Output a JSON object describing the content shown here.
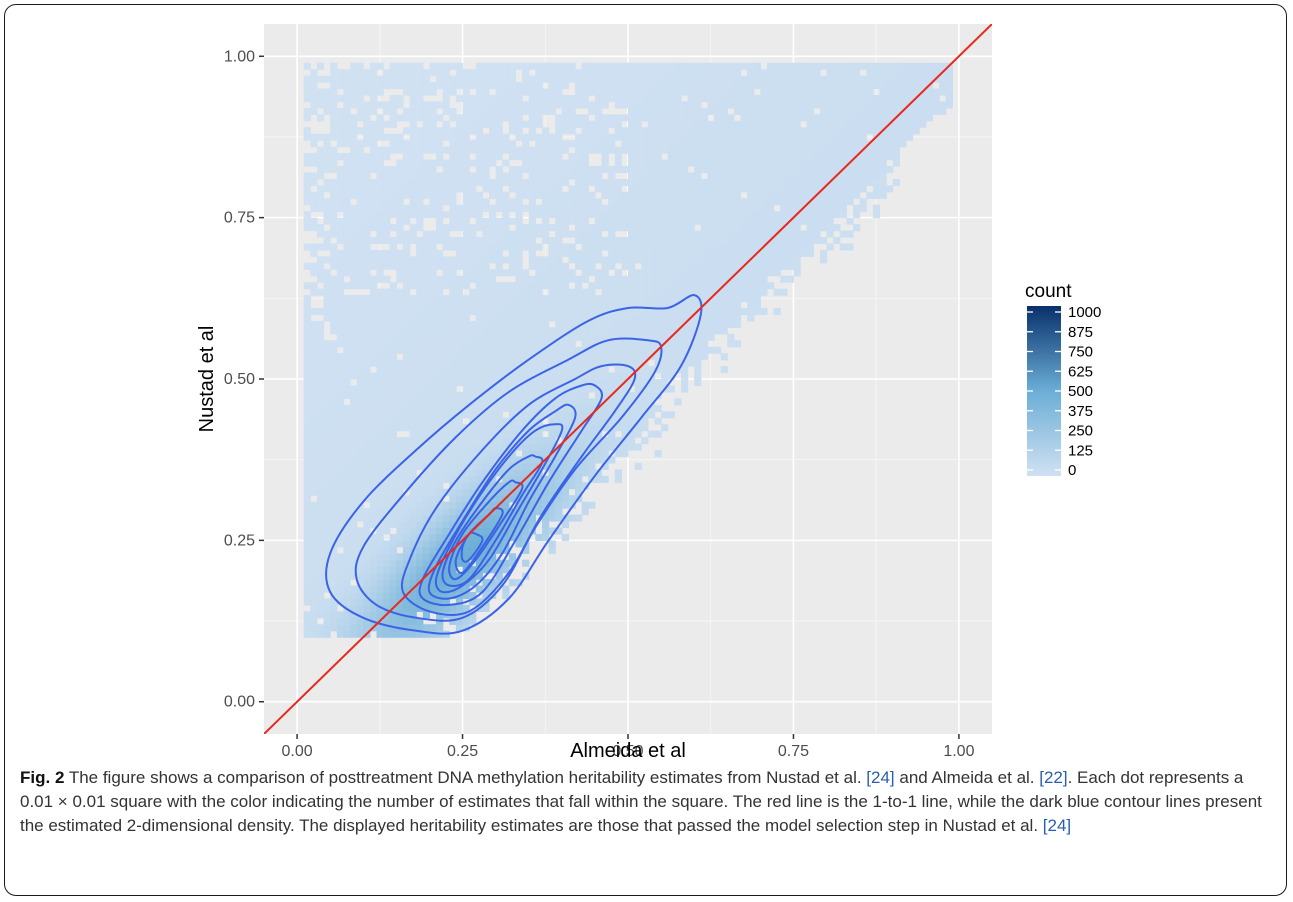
{
  "chart_data": {
    "type": "heatmap",
    "xlabel": "Almeida et al",
    "ylabel": "Nustad et al",
    "xlim": [
      -0.05,
      1.05
    ],
    "ylim": [
      -0.05,
      1.05
    ],
    "x_ticks": [
      "0.00",
      "0.25",
      "0.50",
      "0.75",
      "1.00"
    ],
    "y_ticks": [
      "0.00",
      "0.25",
      "0.50",
      "0.75",
      "1.00"
    ],
    "x_tick_values": [
      0,
      0.25,
      0.5,
      0.75,
      1
    ],
    "y_tick_values": [
      0,
      0.25,
      0.5,
      0.75,
      1
    ],
    "bin_width": 0.01,
    "legend": {
      "title": "count",
      "labels": [
        "1000",
        "875",
        "750",
        "625",
        "500",
        "375",
        "250",
        "125",
        "0"
      ],
      "values": [
        1000,
        875,
        750,
        625,
        500,
        375,
        250,
        125,
        0
      ],
      "color_low": "#d0e1f2",
      "color_high": "#08306b",
      "placement": "right"
    },
    "reference_line": {
      "label": "1-to-1 line",
      "slope": 1,
      "intercept": 0,
      "color": "#e8291c"
    },
    "contour_color": "#3b63e6",
    "panel_background": "#ebebeb",
    "grid": true,
    "density_peak": {
      "x": 0.24,
      "y": 0.21
    },
    "contours": [
      {
        "level": 1,
        "points": [
          [
            0.56,
            0.61
          ],
          [
            0.6,
            0.63
          ],
          [
            0.61,
            0.6
          ],
          [
            0.58,
            0.52
          ],
          [
            0.52,
            0.44
          ],
          [
            0.45,
            0.35
          ],
          [
            0.38,
            0.25
          ],
          [
            0.32,
            0.16
          ],
          [
            0.25,
            0.11
          ],
          [
            0.18,
            0.11
          ],
          [
            0.1,
            0.13
          ],
          [
            0.05,
            0.17
          ],
          [
            0.05,
            0.23
          ],
          [
            0.1,
            0.31
          ],
          [
            0.18,
            0.39
          ],
          [
            0.26,
            0.46
          ],
          [
            0.35,
            0.53
          ],
          [
            0.44,
            0.59
          ],
          [
            0.5,
            0.61
          ]
        ]
      },
      {
        "level": 2,
        "points": [
          [
            0.53,
            0.56
          ],
          [
            0.55,
            0.55
          ],
          [
            0.54,
            0.51
          ],
          [
            0.49,
            0.44
          ],
          [
            0.42,
            0.36
          ],
          [
            0.36,
            0.27
          ],
          [
            0.31,
            0.18
          ],
          [
            0.25,
            0.13
          ],
          [
            0.18,
            0.13
          ],
          [
            0.12,
            0.15
          ],
          [
            0.09,
            0.19
          ],
          [
            0.1,
            0.24
          ],
          [
            0.16,
            0.32
          ],
          [
            0.24,
            0.41
          ],
          [
            0.32,
            0.48
          ],
          [
            0.41,
            0.53
          ],
          [
            0.47,
            0.56
          ]
        ]
      },
      {
        "level": 3,
        "points": [
          [
            0.5,
            0.52
          ],
          [
            0.51,
            0.5
          ],
          [
            0.48,
            0.45
          ],
          [
            0.43,
            0.38
          ],
          [
            0.37,
            0.29
          ],
          [
            0.32,
            0.2
          ],
          [
            0.26,
            0.14
          ],
          [
            0.2,
            0.14
          ],
          [
            0.16,
            0.17
          ],
          [
            0.17,
            0.22
          ],
          [
            0.21,
            0.3
          ],
          [
            0.28,
            0.39
          ],
          [
            0.35,
            0.46
          ],
          [
            0.42,
            0.5
          ],
          [
            0.46,
            0.52
          ]
        ]
      },
      {
        "level": 4,
        "points": [
          [
            0.45,
            0.49
          ],
          [
            0.46,
            0.47
          ],
          [
            0.43,
            0.42
          ],
          [
            0.38,
            0.34
          ],
          [
            0.33,
            0.25
          ],
          [
            0.28,
            0.17
          ],
          [
            0.23,
            0.15
          ],
          [
            0.19,
            0.16
          ],
          [
            0.19,
            0.19
          ],
          [
            0.23,
            0.26
          ],
          [
            0.28,
            0.34
          ],
          [
            0.34,
            0.42
          ],
          [
            0.39,
            0.47
          ],
          [
            0.43,
            0.49
          ]
        ]
      },
      {
        "level": 5,
        "points": [
          [
            0.41,
            0.46
          ],
          [
            0.42,
            0.44
          ],
          [
            0.39,
            0.38
          ],
          [
            0.35,
            0.31
          ],
          [
            0.31,
            0.23
          ],
          [
            0.27,
            0.18
          ],
          [
            0.23,
            0.16
          ],
          [
            0.2,
            0.17
          ],
          [
            0.21,
            0.21
          ],
          [
            0.25,
            0.28
          ],
          [
            0.3,
            0.36
          ],
          [
            0.35,
            0.42
          ],
          [
            0.39,
            0.45
          ]
        ]
      },
      {
        "level": 6,
        "points": [
          [
            0.39,
            0.43
          ],
          [
            0.4,
            0.42
          ],
          [
            0.37,
            0.36
          ],
          [
            0.33,
            0.29
          ],
          [
            0.29,
            0.22
          ],
          [
            0.25,
            0.18
          ],
          [
            0.22,
            0.17
          ],
          [
            0.21,
            0.19
          ],
          [
            0.23,
            0.24
          ],
          [
            0.27,
            0.31
          ],
          [
            0.32,
            0.38
          ],
          [
            0.36,
            0.42
          ]
        ]
      },
      {
        "level": 7,
        "points": [
          [
            0.36,
            0.38
          ],
          [
            0.37,
            0.37
          ],
          [
            0.34,
            0.32
          ],
          [
            0.3,
            0.25
          ],
          [
            0.26,
            0.19
          ],
          [
            0.23,
            0.18
          ],
          [
            0.22,
            0.2
          ],
          [
            0.24,
            0.25
          ],
          [
            0.28,
            0.31
          ],
          [
            0.32,
            0.36
          ],
          [
            0.35,
            0.38
          ]
        ]
      },
      {
        "level": 8,
        "points": [
          [
            0.33,
            0.34
          ],
          [
            0.34,
            0.33
          ],
          [
            0.31,
            0.28
          ],
          [
            0.27,
            0.22
          ],
          [
            0.24,
            0.19
          ],
          [
            0.23,
            0.21
          ],
          [
            0.25,
            0.26
          ],
          [
            0.29,
            0.31
          ],
          [
            0.32,
            0.34
          ]
        ]
      },
      {
        "level": 9,
        "points": [
          [
            0.3,
            0.3
          ],
          [
            0.31,
            0.29
          ],
          [
            0.28,
            0.24
          ],
          [
            0.25,
            0.2
          ],
          [
            0.24,
            0.22
          ],
          [
            0.26,
            0.26
          ],
          [
            0.29,
            0.29
          ]
        ]
      },
      {
        "level": 10,
        "points": [
          [
            0.27,
            0.26
          ],
          [
            0.28,
            0.25
          ],
          [
            0.26,
            0.22
          ],
          [
            0.25,
            0.22
          ],
          [
            0.25,
            0.24
          ],
          [
            0.26,
            0.26
          ]
        ]
      }
    ]
  },
  "caption": {
    "fig_label": "Fig. 2",
    "text_1": " The figure shows a comparison of posttreatment DNA methylation heritability estimates from Nustad et al. ",
    "ref_1": "[24]",
    "text_2": " and Almeida et al. ",
    "ref_2": "[22]",
    "text_3": ". Each dot represents a 0.01 × 0.01 square with the color indicating the number of estimates that fall within the square. The red line is the 1-to-1 line, while the dark blue contour lines present the estimated 2-dimensional density. The displayed heritability estimates are those that passed the model selection step in Nustad et al. ",
    "ref_3": "[24]"
  }
}
